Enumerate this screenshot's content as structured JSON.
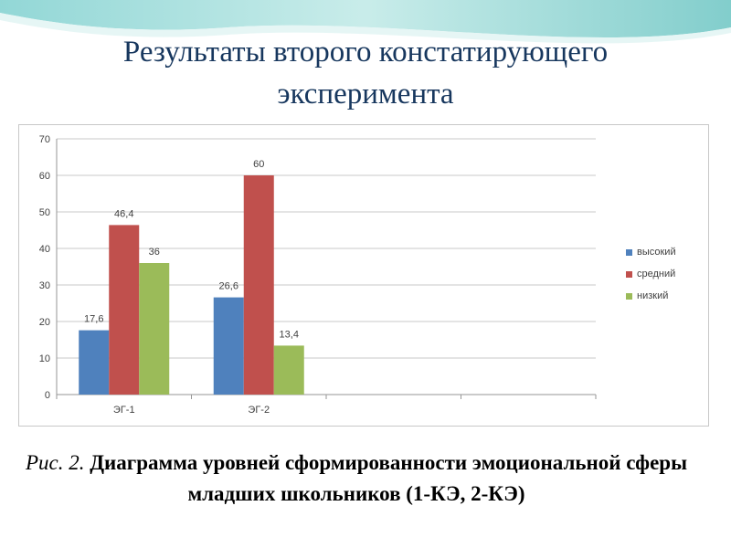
{
  "slide": {
    "title": "Результаты второго констатирующего эксперимента",
    "caption_label": "Рис. 2.",
    "caption_text": "Диаграмма уровней сформированности эмоциональной сферы младших школьников (1-КЭ, 2-КЭ)"
  },
  "chart_data": {
    "type": "bar",
    "categories": [
      "ЭГ-1",
      "ЭГ-2",
      "",
      ""
    ],
    "series": [
      {
        "name": "высокий",
        "values": [
          17.6,
          26.6,
          null,
          null
        ],
        "labels": [
          "17,6",
          "26,6",
          "",
          ""
        ],
        "color": "#4f81bd"
      },
      {
        "name": "средний",
        "values": [
          46.4,
          60,
          null,
          null
        ],
        "labels": [
          "46,4",
          "60",
          "",
          ""
        ],
        "color": "#c0504d"
      },
      {
        "name": "низкий",
        "values": [
          36,
          13.4,
          null,
          null
        ],
        "labels": [
          "36",
          "13,4",
          "",
          ""
        ],
        "color": "#9bbb59"
      }
    ],
    "yticks": [
      "0",
      "10",
      "20",
      "30",
      "40",
      "50",
      "60",
      "70"
    ],
    "ylim": [
      0,
      70
    ],
    "grid": true,
    "legend_position": "right"
  }
}
